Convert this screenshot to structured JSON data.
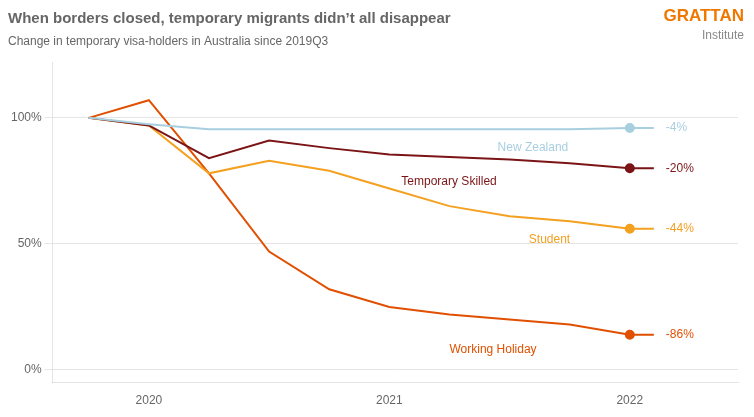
{
  "chart_data": {
    "type": "line",
    "title": "When borders closed, temporary migrants didn’t all disappear",
    "subtitle": "Change in temporary visa-holders in Australia since 2019Q3",
    "x": [
      2019.75,
      2020.0,
      2020.25,
      2020.5,
      2020.75,
      2021.0,
      2021.25,
      2021.5,
      2021.75,
      2022.0,
      2022.1
    ],
    "series": [
      {
        "name": "New Zealand",
        "color": "#a8cfe0",
        "values": [
          1.0,
          0.975,
          0.955,
          0.955,
          0.955,
          0.955,
          0.955,
          0.955,
          0.955,
          0.96,
          0.96
        ]
      },
      {
        "name": "Temporary Skilled",
        "color": "#7b1416",
        "values": [
          1.0,
          0.97,
          0.84,
          0.91,
          0.88,
          0.855,
          0.845,
          0.835,
          0.82,
          0.8,
          0.8
        ]
      },
      {
        "name": "Student",
        "color": "#f4a020",
        "values": [
          1.0,
          0.97,
          0.78,
          0.83,
          0.79,
          0.72,
          0.65,
          0.61,
          0.59,
          0.56,
          0.56
        ]
      },
      {
        "name": "Working Holiday",
        "color": "#e05000",
        "values": [
          1.0,
          1.07,
          0.78,
          0.47,
          0.32,
          0.25,
          0.22,
          0.2,
          0.18,
          0.14,
          0.14
        ]
      }
    ],
    "xlim": [
      2019.6,
      2022.45
    ],
    "xticks": [
      2020,
      2021,
      2022
    ],
    "ylim": [
      -0.05,
      1.22
    ],
    "yticks": [
      {
        "value": 0.0,
        "label": "0%"
      },
      {
        "value": 0.5,
        "label": "50%"
      },
      {
        "value": 1.0,
        "label": "100%"
      }
    ],
    "grid": "y",
    "annotations": [
      {
        "text": "-4%",
        "x": 2022.15,
        "y": 0.96,
        "color": "#a8cfe0"
      },
      {
        "text": "New Zealand",
        "x": 2021.45,
        "y": 0.88,
        "color": "#a8cfe0"
      },
      {
        "text": "-20%",
        "x": 2022.15,
        "y": 0.8,
        "color": "#7b1416"
      },
      {
        "text": "Temporary Skilled",
        "x": 2021.05,
        "y": 0.745,
        "color": "#7b1416"
      },
      {
        "text": "-44%",
        "x": 2022.15,
        "y": 0.56,
        "color": "#f4a020"
      },
      {
        "text": "Student",
        "x": 2021.58,
        "y": 0.515,
        "color": "#f4a020"
      },
      {
        "text": "-86%",
        "x": 2022.15,
        "y": 0.14,
        "color": "#e05000"
      },
      {
        "text": "Working Holiday",
        "x": 2021.25,
        "y": 0.082,
        "color": "#e05000"
      },
      {
        "text": "GRATTAN",
        "color": "#f07800"
      },
      {
        "text": "Institute",
        "color": "#888888"
      }
    ]
  }
}
